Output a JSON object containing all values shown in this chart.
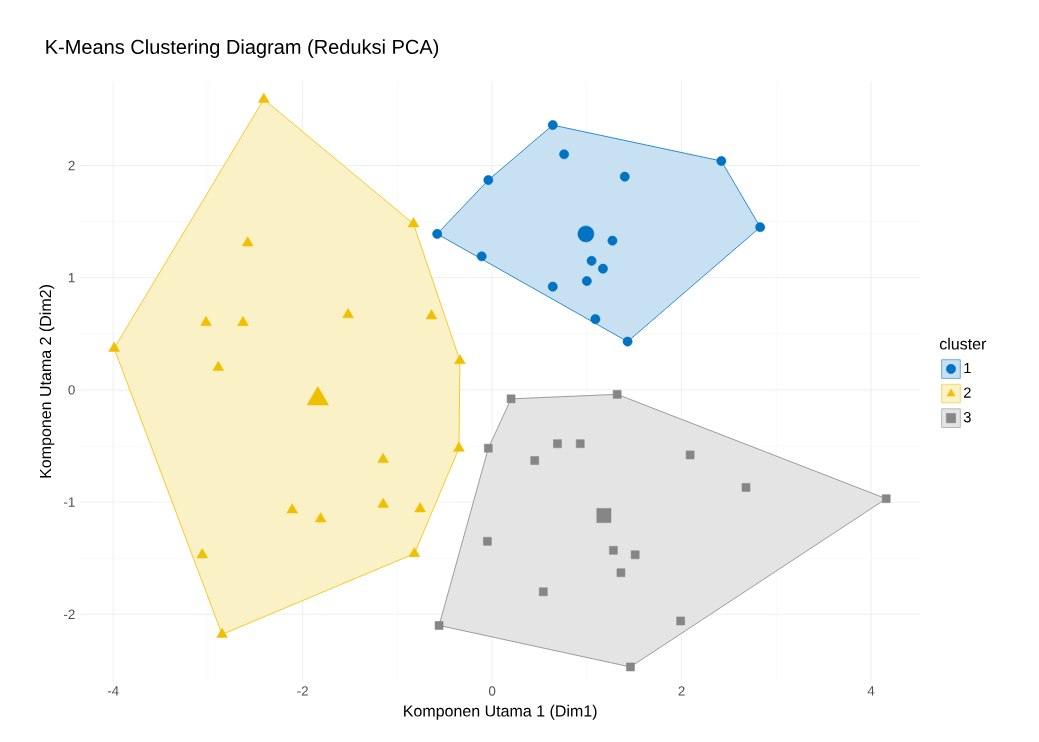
{
  "chart_data": {
    "type": "scatter",
    "title": "K-Means Clustering Diagram (Reduksi PCA)",
    "xlabel": "Komponen Utama 1 (Dim1)",
    "ylabel": "Komponen Utama 2 (Dim2)",
    "legend_title": "cluster",
    "legend": "right",
    "grid": true,
    "xlim": [
      -4.35,
      4.52
    ],
    "ylim": [
      -2.6,
      2.75
    ],
    "xticks": [
      -4,
      -2,
      0,
      2,
      4
    ],
    "yticks": [
      -2,
      -1,
      0,
      1,
      2
    ],
    "series": [
      {
        "name": "1",
        "color": "#0073c2",
        "marker": "circle",
        "x": [
          0.64,
          0.76,
          -0.04,
          1.4,
          2.42,
          -0.58,
          2.83,
          -0.11,
          1.27,
          1.05,
          1.17,
          1.0,
          0.64,
          1.09,
          1.43,
          0.99
        ],
        "values": [
          2.36,
          2.1,
          1.87,
          1.9,
          2.04,
          1.39,
          1.45,
          1.19,
          1.33,
          1.15,
          1.08,
          0.97,
          0.92,
          0.63,
          0.43,
          1.39
        ],
        "sizes": [
          0.33,
          0.33,
          0.33,
          0.33,
          0.33,
          0.33,
          0.33,
          0.33,
          0.33,
          0.33,
          0.33,
          0.33,
          0.33,
          0.33,
          0.33,
          1
        ]
      },
      {
        "name": "2",
        "color": "#efc000",
        "marker": "triangle",
        "x": [
          -2.41,
          -0.83,
          -2.58,
          -3.99,
          -3.02,
          -2.63,
          -1.52,
          -0.64,
          -2.89,
          -0.34,
          -0.35,
          -1.15,
          -2.11,
          -1.81,
          -1.15,
          -0.76,
          -3.06,
          -0.82,
          -2.85,
          -1.84
        ],
        "values": [
          2.59,
          1.48,
          1.31,
          0.37,
          0.6,
          0.6,
          0.67,
          0.66,
          0.2,
          0.26,
          -0.52,
          -0.62,
          -1.07,
          -1.15,
          -1.02,
          -1.06,
          -1.47,
          -1.46,
          -2.18,
          -0.08
        ],
        "sizes": [
          0.25,
          0.25,
          0.25,
          0.25,
          0.25,
          0.25,
          0.25,
          0.25,
          0.25,
          0.25,
          0.25,
          0.25,
          0.25,
          0.25,
          0.25,
          0.25,
          0.25,
          0.25,
          0.25,
          1
        ]
      },
      {
        "name": "3",
        "color": "#868686",
        "marker": "square",
        "x": [
          0.2,
          1.32,
          -0.04,
          0.45,
          0.69,
          0.93,
          2.09,
          2.68,
          4.16,
          -0.05,
          1.28,
          1.51,
          1.36,
          0.54,
          1.99,
          -0.56,
          1.46,
          1.18
        ],
        "values": [
          -0.08,
          -0.04,
          -0.52,
          -0.63,
          -0.48,
          -0.48,
          -0.58,
          -0.87,
          -0.97,
          -1.35,
          -1.43,
          -1.47,
          -1.63,
          -1.8,
          -2.06,
          -2.1,
          -2.47,
          -1.12
        ],
        "sizes": [
          0.32,
          0.32,
          0.32,
          0.32,
          0.32,
          0.32,
          0.32,
          0.32,
          0.32,
          0.32,
          0.32,
          0.32,
          0.32,
          0.32,
          0.32,
          0.32,
          0.32,
          1
        ]
      }
    ]
  }
}
